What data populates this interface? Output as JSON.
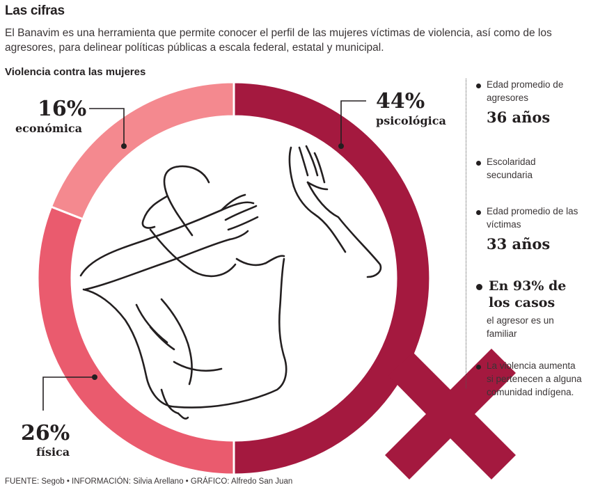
{
  "header": {
    "title": "Las cifras",
    "intro": "El Banavim es una herramienta que permite conocer el perfil de las mujeres víctimas de violencia, así como de los agresores, para delinear políticas públicas a escala federal, estatal y municipal."
  },
  "chart_data": {
    "type": "pie",
    "title": "Violencia contra las mujeres",
    "slices": [
      {
        "label": "psicológica",
        "value": 44,
        "value_label": "44%",
        "color": "#a4193f"
      },
      {
        "label": "física",
        "value": 26,
        "value_label": "26%",
        "color": "#ea5b6e"
      },
      {
        "label": "económica",
        "value": 16,
        "value_label": "16%",
        "color": "#f4898f"
      }
    ]
  },
  "facts": [
    {
      "text": "Edad promedio de agresores",
      "value": "36 años"
    },
    {
      "text": "Escolaridad secundaria"
    },
    {
      "text": "Edad promedio de las víctimas",
      "value": "33 años"
    },
    {
      "highlight": "En 93% de los casos",
      "text": "el agresor es un familiar"
    },
    {
      "text": "La violencia aumenta si pertenecen a alguna comunidad indígena."
    }
  ],
  "footer": "FUENTE: Segob • INFORMACIÓN: Silvia Arellano • GRÁFICO: Alfredo San Juan",
  "colors": {
    "dark": "#a4193f",
    "mid": "#ea5b6e",
    "light": "#f4898f",
    "text": "#231f20"
  }
}
